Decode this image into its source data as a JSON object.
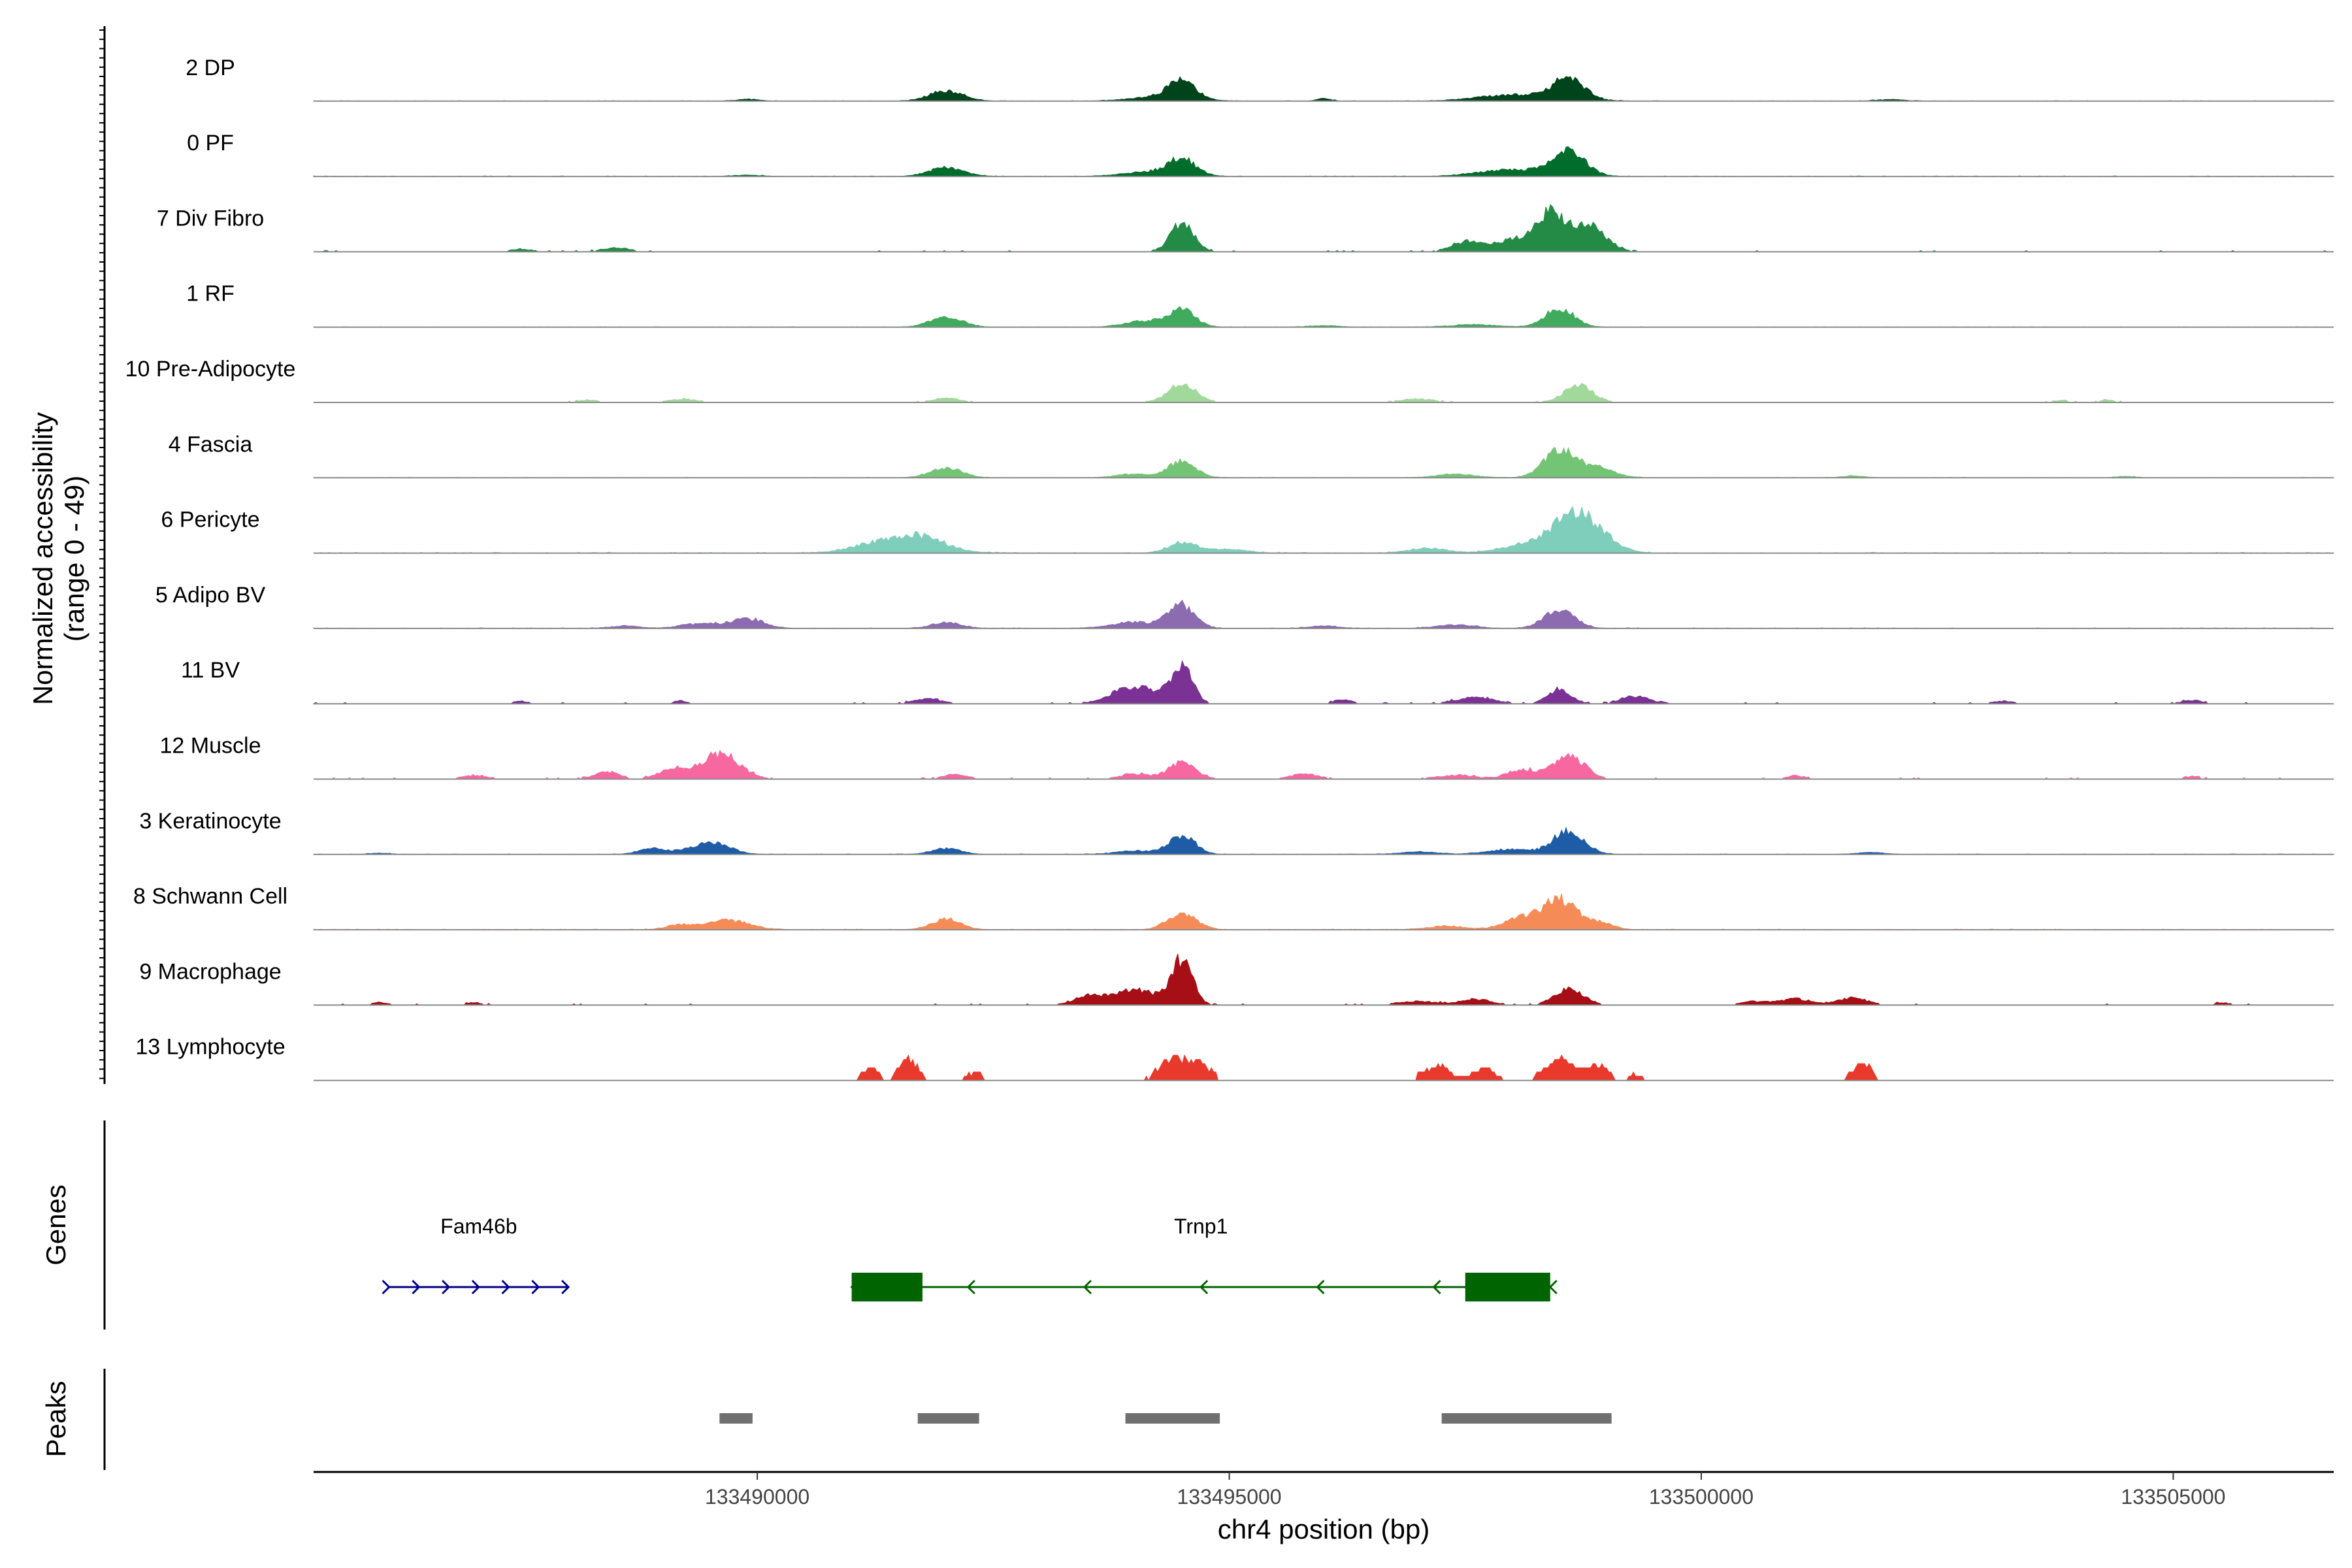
{
  "chart_data": {
    "type": "area",
    "chromosome": "chr4",
    "xlabel": "chr4 position (bp)",
    "ylabel_line1": "Normalized accessibility",
    "ylabel_line2": "(range 0 - 49)",
    "y_range": [
      0,
      49
    ],
    "xlim": [
      133485300,
      133506700
    ],
    "x_ticks": [
      133490000,
      133495000,
      133500000,
      133505000
    ],
    "x_tick_labels": [
      "133490000",
      "133495000",
      "133500000",
      "133505000"
    ],
    "panel_labels": {
      "genes": "Genes",
      "peaks": "Peaks"
    },
    "tracks": [
      {
        "name": "2 DP",
        "color": "#00441b",
        "peaks": [
          [
            133489900,
            1.5,
            120
          ],
          [
            133492000,
            8.5,
            180
          ],
          [
            133494500,
            14,
            140
          ],
          [
            133494300,
            4,
            300
          ],
          [
            133496000,
            2,
            80
          ],
          [
            133497800,
            3,
            300
          ],
          [
            133498600,
            17,
            160
          ],
          [
            133498300,
            4,
            350
          ],
          [
            133502000,
            1.2,
            150
          ]
        ],
        "noise": 0.35,
        "seed": 11
      },
      {
        "name": "0 PF",
        "color": "#006d2c",
        "peaks": [
          [
            133489900,
            1,
            150
          ],
          [
            133492000,
            7.5,
            180
          ],
          [
            133494500,
            13,
            140
          ],
          [
            133494200,
            4,
            300
          ],
          [
            133497800,
            2.5,
            300
          ],
          [
            133498600,
            19,
            170
          ],
          [
            133498200,
            4,
            350
          ]
        ],
        "noise": 0.4,
        "seed": 23
      },
      {
        "name": "7 Div Fibro",
        "color": "#238b45",
        "peaks": [
          [
            133494500,
            24,
            120
          ],
          [
            133497500,
            8,
            150
          ],
          [
            133498400,
            30,
            140
          ],
          [
            133498800,
            22,
            180
          ],
          [
            133498000,
            10,
            200
          ],
          [
            133487500,
            2,
            120
          ],
          [
            133488500,
            3,
            150
          ]
        ],
        "noise": 1.0,
        "seed": 37,
        "sparse": true
      },
      {
        "name": "1 RF",
        "color": "#41ab5d",
        "peaks": [
          [
            133492000,
            8.5,
            170
          ],
          [
            133494500,
            14,
            140
          ],
          [
            133494100,
            5,
            200
          ],
          [
            133498500,
            16,
            150
          ],
          [
            133497600,
            2,
            250
          ],
          [
            133496000,
            1.2,
            150
          ]
        ],
        "noise": 0.3,
        "seed": 49
      },
      {
        "name": "10 Pre-Adipocyte",
        "color": "#a1d99b",
        "peaks": [
          [
            133488200,
            2,
            100
          ],
          [
            133489200,
            2.5,
            150
          ],
          [
            133492000,
            3.5,
            140
          ],
          [
            133494500,
            15,
            150
          ],
          [
            133498700,
            14,
            150
          ],
          [
            133497000,
            2.5,
            200
          ],
          [
            133504300,
            2,
            80
          ],
          [
            133503800,
            1.5,
            80
          ]
        ],
        "noise": 0.8,
        "seed": 61,
        "sparse": true
      },
      {
        "name": "4 Fascia",
        "color": "#74c476",
        "peaks": [
          [
            133492000,
            8,
            170
          ],
          [
            133494500,
            14,
            140
          ],
          [
            133494000,
            3,
            200
          ],
          [
            133498500,
            22,
            170
          ],
          [
            133498900,
            8,
            180
          ],
          [
            133497400,
            3,
            200
          ],
          [
            133501600,
            1.5,
            120
          ],
          [
            133504500,
            1.2,
            100
          ]
        ],
        "noise": 0.35,
        "seed": 73
      },
      {
        "name": "6 Pericyte",
        "color": "#7fcdbb",
        "peaks": [
          [
            133491700,
            14,
            280
          ],
          [
            133491200,
            6,
            250
          ],
          [
            133494500,
            9,
            150
          ],
          [
            133495000,
            3,
            200
          ],
          [
            133498600,
            28,
            210
          ],
          [
            133498900,
            14,
            200
          ],
          [
            133498100,
            6,
            250
          ],
          [
            133497100,
            4,
            200
          ]
        ],
        "noise": 0.6,
        "seed": 85
      },
      {
        "name": "5 Adipo BV",
        "color": "#8c6bb1",
        "peaks": [
          [
            133489900,
            8,
            170
          ],
          [
            133489400,
            4,
            200
          ],
          [
            133492000,
            5,
            150
          ],
          [
            133494000,
            5,
            250
          ],
          [
            133494500,
            19,
            140
          ],
          [
            133498500,
            15,
            160
          ],
          [
            133497400,
            3,
            200
          ],
          [
            133496000,
            2,
            150
          ],
          [
            133488600,
            2,
            150
          ]
        ],
        "noise": 0.5,
        "seed": 97
      },
      {
        "name": "11 BV",
        "color": "#7b3294",
        "peaks": [
          [
            133494500,
            30,
            110
          ],
          [
            133494100,
            12,
            200
          ],
          [
            133493800,
            6,
            150
          ],
          [
            133491800,
            4,
            150
          ],
          [
            133498500,
            12,
            120
          ],
          [
            133499300,
            6,
            150
          ],
          [
            133497600,
            5,
            200
          ],
          [
            133487500,
            2,
            80
          ],
          [
            133489200,
            2,
            80
          ],
          [
            133496200,
            3,
            100
          ],
          [
            133503200,
            2,
            100
          ],
          [
            133505200,
            3,
            100
          ]
        ],
        "noise": 1.0,
        "seed": 109,
        "sparse": true
      },
      {
        "name": "12 Muscle",
        "color": "#f768a1",
        "peaks": [
          [
            133489600,
            21,
            200
          ],
          [
            133489100,
            8,
            150
          ],
          [
            133488400,
            6,
            120
          ],
          [
            133487000,
            3,
            120
          ],
          [
            133492100,
            4,
            120
          ],
          [
            133494500,
            14,
            140
          ],
          [
            133494000,
            4,
            150
          ],
          [
            133495800,
            4,
            150
          ],
          [
            133498600,
            20,
            160
          ],
          [
            133498100,
            8,
            150
          ],
          [
            133497400,
            3,
            200
          ],
          [
            133501000,
            3,
            80
          ],
          [
            133505200,
            2,
            80
          ]
        ],
        "noise": 1.0,
        "seed": 121,
        "sparse": true
      },
      {
        "name": "3 Keratinocyte",
        "color": "#1f5ca8",
        "peaks": [
          [
            133489500,
            10,
            200
          ],
          [
            133488900,
            5,
            150
          ],
          [
            133492000,
            5,
            150
          ],
          [
            133494500,
            15,
            140
          ],
          [
            133494000,
            3,
            200
          ],
          [
            133498600,
            20,
            160
          ],
          [
            133498000,
            4,
            250
          ],
          [
            133497000,
            2,
            200
          ],
          [
            133501800,
            1.5,
            150
          ],
          [
            133486000,
            1,
            100
          ]
        ],
        "noise": 0.4,
        "seed": 133
      },
      {
        "name": "8 Schwann Cell",
        "color": "#f58c58",
        "peaks": [
          [
            133489700,
            8,
            200
          ],
          [
            133489200,
            4,
            150
          ],
          [
            133492000,
            9,
            150
          ],
          [
            133494500,
            14,
            150
          ],
          [
            133498500,
            25,
            170
          ],
          [
            133498100,
            10,
            180
          ],
          [
            133498900,
            6,
            150
          ],
          [
            133497300,
            3,
            200
          ]
        ],
        "noise": 0.5,
        "seed": 145
      },
      {
        "name": "9 Macrophage",
        "color": "#a50f15",
        "peaks": [
          [
            133494500,
            36,
            110
          ],
          [
            133494000,
            12,
            250
          ],
          [
            133493500,
            6,
            150
          ],
          [
            133498600,
            13,
            150
          ],
          [
            133497600,
            5,
            150
          ],
          [
            133497000,
            3,
            200
          ],
          [
            133501000,
            5,
            150
          ],
          [
            133501600,
            6,
            150
          ],
          [
            133500600,
            3,
            150
          ],
          [
            133486000,
            2,
            80
          ],
          [
            133487000,
            2,
            80
          ],
          [
            133505500,
            1.5,
            80
          ]
        ],
        "noise": 1.0,
        "seed": 157,
        "sparse": true
      },
      {
        "name": "13 Lymphocyte",
        "color": "#e8392c",
        "peaks": [
          [
            133491600,
            18,
            100
          ],
          [
            133491200,
            10,
            80
          ],
          [
            133492300,
            6,
            100
          ],
          [
            133494400,
            18,
            150
          ],
          [
            133494700,
            12,
            120
          ],
          [
            133497200,
            12,
            150
          ],
          [
            133497700,
            10,
            120
          ],
          [
            133498500,
            18,
            150
          ],
          [
            133498900,
            12,
            120
          ],
          [
            133501700,
            14,
            100
          ],
          [
            133499300,
            5,
            80
          ]
        ],
        "noise": 0,
        "seed": 169,
        "sparse": true,
        "blocky": true
      }
    ],
    "genes": [
      {
        "name": "Fam46b",
        "start": 133486100,
        "end": 133488000,
        "strand": "+",
        "color": "#00008b",
        "exons": []
      },
      {
        "name": "Trnp1",
        "start": 133491000,
        "end": 133498400,
        "strand": "-",
        "color": "#006400",
        "exons": [
          [
            133491000,
            133491750
          ],
          [
            133497500,
            133498400
          ]
        ]
      }
    ],
    "peaks": [
      [
        133489600,
        133489950
      ],
      [
        133491700,
        133492350
      ],
      [
        133493900,
        133494900
      ],
      [
        133497250,
        133499050
      ]
    ]
  }
}
